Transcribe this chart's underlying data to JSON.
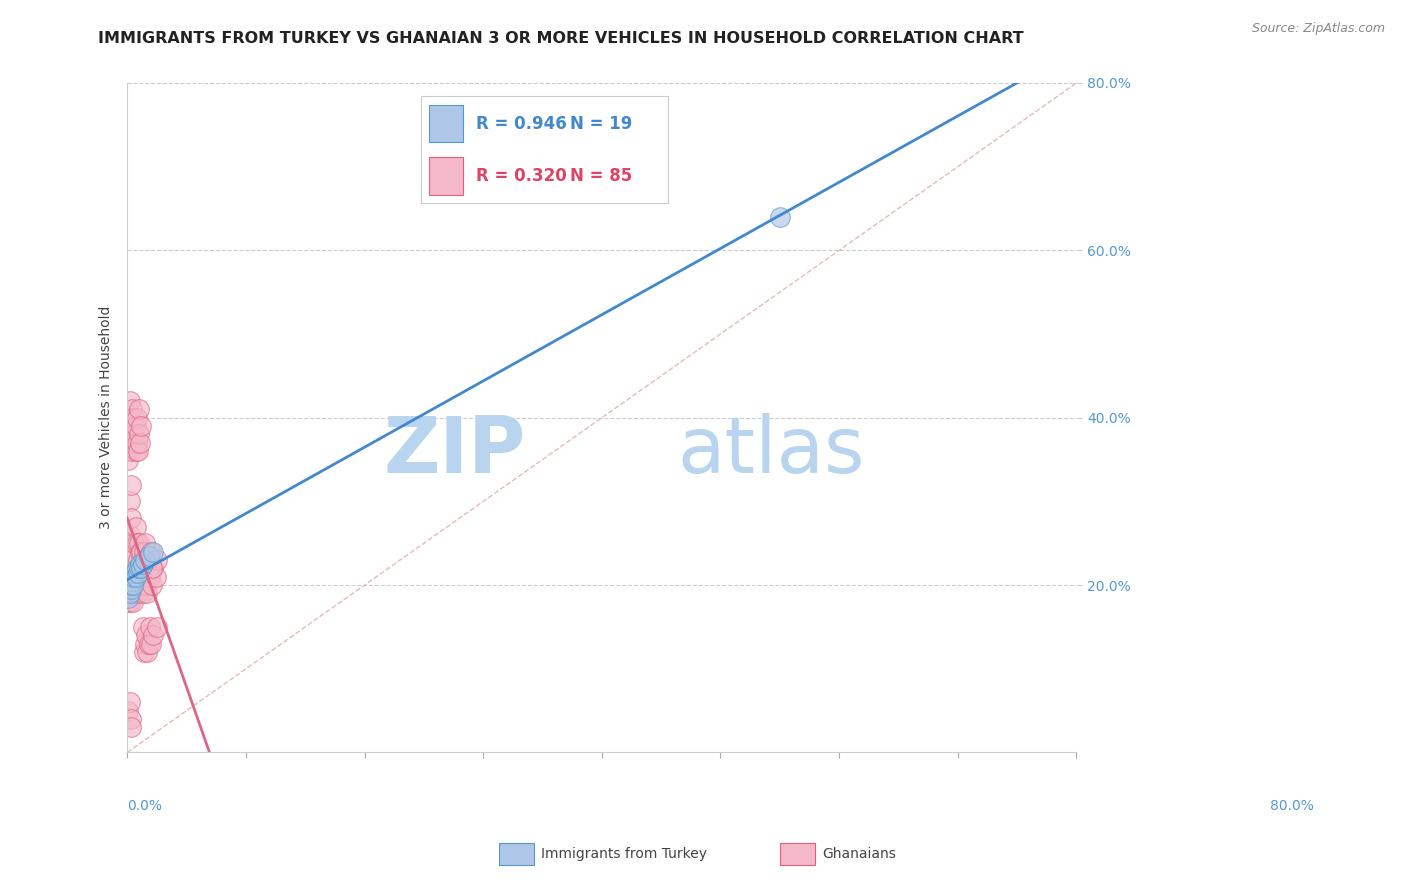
{
  "title": "IMMIGRANTS FROM TURKEY VS GHANAIAN 3 OR MORE VEHICLES IN HOUSEHOLD CORRELATION CHART",
  "source": "Source: ZipAtlas.com",
  "ylabel": "3 or more Vehicles in Household",
  "ytick_values": [
    0.2,
    0.4,
    0.6,
    0.8
  ],
  "xmin": 0.0,
  "xmax": 0.8,
  "ymin": 0.0,
  "ymax": 0.8,
  "turkey_color_fill": "#aec6e8",
  "turkey_color_edge": "#5599cc",
  "ghana_color_fill": "#f4b8c8",
  "ghana_color_edge": "#e06080",
  "reg_line_color_turkey": "#4488cc",
  "reg_line_color_ghana": "#dd6688",
  "ref_line_color": "#ddaaaa",
  "watermark_zip": "ZIP",
  "watermark_atlas": "atlas",
  "watermark_color": "#cce0f0",
  "grid_color": "#cccccc",
  "title_fontsize": 11.5,
  "source_fontsize": 9,
  "legend_R_N": [
    {
      "R": "0.946",
      "N": "19",
      "color_fill": "#aec6e8",
      "color_edge": "#5599cc",
      "text_color": "#4488cc"
    },
    {
      "R": "0.320",
      "N": "85",
      "color_fill": "#f4b8c8",
      "color_edge": "#e06080",
      "text_color": "#dd4466"
    }
  ],
  "turkey_x": [
    0.001,
    0.002,
    0.003,
    0.003,
    0.004,
    0.005,
    0.005,
    0.006,
    0.007,
    0.008,
    0.009,
    0.01,
    0.011,
    0.012,
    0.013,
    0.015,
    0.018,
    0.022,
    0.55
  ],
  "turkey_y": [
    0.185,
    0.19,
    0.195,
    0.2,
    0.205,
    0.2,
    0.21,
    0.215,
    0.21,
    0.22,
    0.215,
    0.22,
    0.225,
    0.22,
    0.225,
    0.23,
    0.235,
    0.24,
    0.64
  ],
  "ghana_x": [
    0.001,
    0.001,
    0.001,
    0.002,
    0.002,
    0.002,
    0.003,
    0.003,
    0.003,
    0.004,
    0.004,
    0.004,
    0.005,
    0.005,
    0.005,
    0.006,
    0.006,
    0.006,
    0.007,
    0.007,
    0.007,
    0.008,
    0.008,
    0.008,
    0.009,
    0.009,
    0.009,
    0.01,
    0.01,
    0.01,
    0.011,
    0.011,
    0.012,
    0.012,
    0.013,
    0.013,
    0.014,
    0.014,
    0.015,
    0.015,
    0.016,
    0.016,
    0.017,
    0.018,
    0.019,
    0.02,
    0.021,
    0.022,
    0.024,
    0.025,
    0.001,
    0.001,
    0.002,
    0.002,
    0.003,
    0.003,
    0.004,
    0.004,
    0.005,
    0.005,
    0.006,
    0.007,
    0.007,
    0.008,
    0.008,
    0.009,
    0.01,
    0.01,
    0.011,
    0.012,
    0.013,
    0.014,
    0.015,
    0.016,
    0.017,
    0.018,
    0.019,
    0.02,
    0.022,
    0.025,
    0.001,
    0.002,
    0.003,
    0.003,
    0.021
  ],
  "ghana_y": [
    0.2,
    0.22,
    0.18,
    0.26,
    0.3,
    0.18,
    0.32,
    0.28,
    0.2,
    0.22,
    0.19,
    0.24,
    0.18,
    0.23,
    0.2,
    0.19,
    0.25,
    0.2,
    0.21,
    0.27,
    0.2,
    0.21,
    0.25,
    0.2,
    0.22,
    0.19,
    0.23,
    0.21,
    0.25,
    0.2,
    0.24,
    0.2,
    0.24,
    0.2,
    0.19,
    0.23,
    0.21,
    0.24,
    0.22,
    0.25,
    0.2,
    0.23,
    0.19,
    0.22,
    0.21,
    0.24,
    0.2,
    0.22,
    0.21,
    0.23,
    0.35,
    0.4,
    0.37,
    0.42,
    0.36,
    0.39,
    0.38,
    0.41,
    0.37,
    0.4,
    0.38,
    0.36,
    0.39,
    0.37,
    0.4,
    0.36,
    0.38,
    0.41,
    0.37,
    0.39,
    0.15,
    0.12,
    0.13,
    0.14,
    0.12,
    0.13,
    0.15,
    0.13,
    0.14,
    0.15,
    0.05,
    0.06,
    0.04,
    0.03,
    0.22
  ]
}
